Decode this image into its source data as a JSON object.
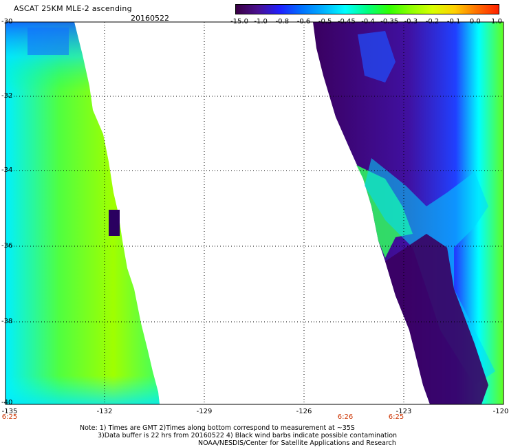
{
  "header": {
    "title": "ASCAT 25KM MLE-2 ascending",
    "date": "20160522"
  },
  "legend": {
    "labels": [
      "-15.0",
      "-1.0",
      "-0.8",
      "-0.6",
      "-0.5",
      "-0.45",
      "-0.4",
      "-0.35",
      "-0.3",
      "-0.2",
      "-0.1",
      "0.0",
      "1.0"
    ],
    "colors": [
      "#3a0044",
      "#4a1090",
      "#2020ff",
      "#0070ff",
      "#00b0ff",
      "#00ffff",
      "#00ff80",
      "#30ff00",
      "#90ff00",
      "#d8ff00",
      "#ffd000",
      "#ff7000",
      "#ff2000"
    ]
  },
  "axes": {
    "y_labels": [
      "-30",
      "-32",
      "-34",
      "-36",
      "-38",
      "-40"
    ],
    "x_labels": [
      "-135",
      "-132",
      "-129",
      "-126",
      "-123",
      "-120"
    ]
  },
  "times": [
    "6:25",
    "6:26",
    "6:25"
  ],
  "notes": [
    "Note: 1) Times are GMT 2)Times along bottom correspond to measurement at ~35S",
    "3)Data buffer is 22 hrs from 20160522 4) Black wind barbs indicate possible contamination",
    "NOAA/NESDIS/Center for Satellite Applications and Research"
  ]
}
